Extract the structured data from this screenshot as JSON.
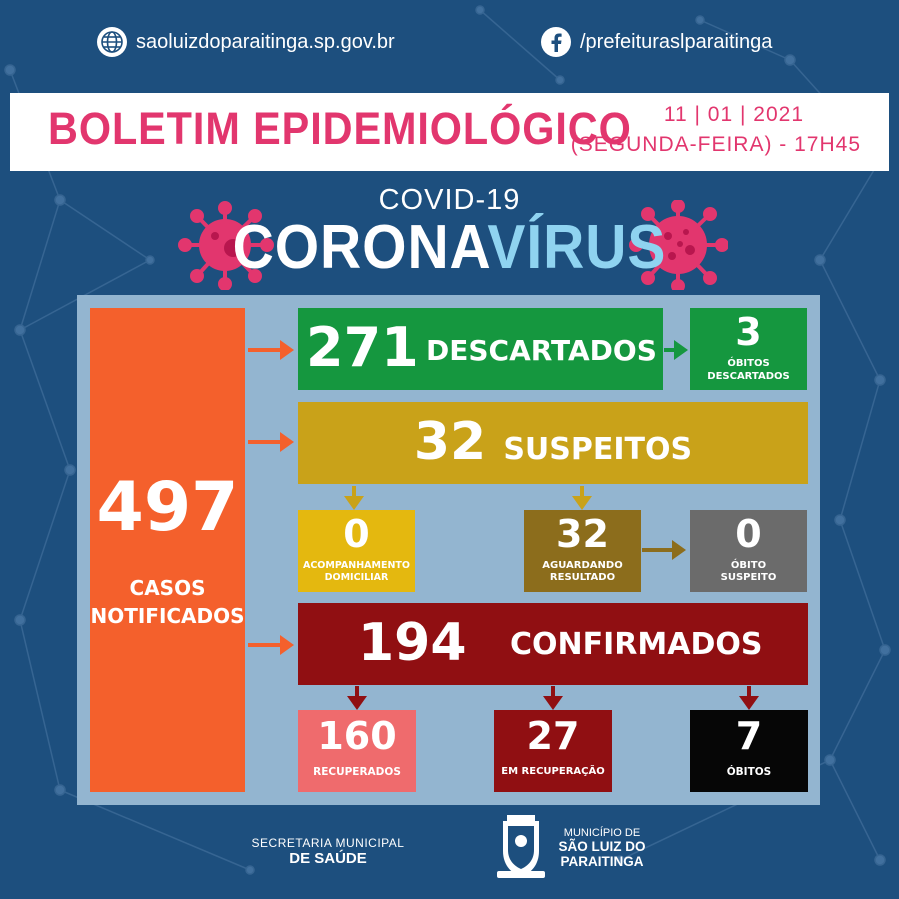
{
  "links": {
    "website": "saoluizdoparaitinga.sp.gov.br",
    "facebook": "/prefeituraslparaitinga"
  },
  "header": {
    "title": "BOLETIM EPIDEMIOLÓGICO",
    "date": "11 | 01 | 2021",
    "weekday_time": "(SEGUNDA-FEIRA) - 17H45"
  },
  "hero": {
    "covid": "COVID-19",
    "corona_a": "CORONA",
    "corona_b": "VÍRUS"
  },
  "stats": {
    "notified": {
      "value": "497",
      "label_1": "CASOS",
      "label_2": "NOTIFICADOS"
    },
    "discarded": {
      "value": "271",
      "label": "DESCARTADOS"
    },
    "deaths_discarded": {
      "value": "3",
      "label_1": "ÓBITOS",
      "label_2": "DESCARTADOS"
    },
    "suspects": {
      "value": "32",
      "label": "SUSPEITOS"
    },
    "home_monitoring": {
      "value": "0",
      "label_1": "ACOMPANHAMENTO",
      "label_2": "DOMICILIAR"
    },
    "awaiting": {
      "value": "32",
      "label_1": "AGUARDANDO",
      "label_2": "RESULTADO"
    },
    "suspect_death": {
      "value": "0",
      "label_1": "ÓBITO",
      "label_2": "SUSPEITO"
    },
    "confirmed": {
      "value": "194",
      "label": "CONFIRMADOS"
    },
    "recovered": {
      "value": "160",
      "label": "RECUPERADOS"
    },
    "recovering": {
      "value": "27",
      "label": "EM RECUPERAÇÃO"
    },
    "deaths": {
      "value": "7",
      "label": "ÓBITOS"
    }
  },
  "colors": {
    "background": "#1d4f7e",
    "accent_pink": "#e2366e",
    "panel": "#93b5d0",
    "orange": "#f4602c",
    "green": "#15973f",
    "mustard": "#c9a219",
    "yellow": "#e4b80f",
    "olive": "#8c6d1c",
    "gray": "#6b6b6b",
    "darkred": "#900f12",
    "salmon": "#ef6b6d",
    "black": "#060606"
  },
  "footer": {
    "secretaria_1": "SECRETARIA MUNICIPAL",
    "secretaria_2": "DE SAÚDE",
    "municipio_1": "MUNICÍPIO DE",
    "municipio_2": "SÃO LUIZ DO",
    "municipio_3": "PARAITINGA",
    "seal_icon": "city-coat-of-arms"
  }
}
